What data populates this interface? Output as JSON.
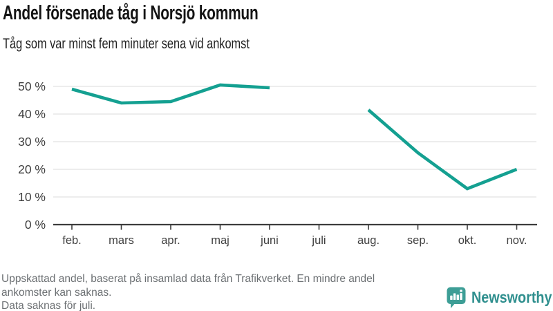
{
  "chart_data": {
    "type": "line",
    "title": "Andel försenade tåg i Norsjö kommun",
    "subtitle": "Tåg som var minst fem minuter sena vid ankomst",
    "categories": [
      "feb.",
      "mars",
      "apr.",
      "maj",
      "juni",
      "juli",
      "aug.",
      "sep.",
      "okt.",
      "nov."
    ],
    "series": [
      {
        "name": "Andel försenade tåg",
        "values": [
          49,
          44,
          44.5,
          50.5,
          49.5,
          null,
          41.5,
          26,
          13,
          20
        ]
      }
    ],
    "unit": "%",
    "ylim": [
      0,
      55
    ],
    "yticks": [
      0,
      10,
      20,
      30,
      40,
      50
    ],
    "ytick_suffix": " %",
    "grid": "horizontal",
    "legend": "none",
    "missing_data_note": "Data saknas för juli."
  },
  "notes": {
    "lines": [
      "Uppskattad andel, baserat på insamlad data från Trafikverket. En mindre andel",
      "ankomster kan saknas.",
      "Data saknas för juli."
    ]
  },
  "logo": {
    "text": "Newsworthy"
  },
  "colors": {
    "line": "#14a091",
    "grid": "#e2e2e2",
    "axis": "#3c3c3c",
    "tick_label": "#3f3f3f",
    "title": "#141414",
    "subtitle": "#212121",
    "footer_text": "#6b6f72",
    "logo_text": "#2f8f8e",
    "logo_icon": "#3d9e96"
  }
}
